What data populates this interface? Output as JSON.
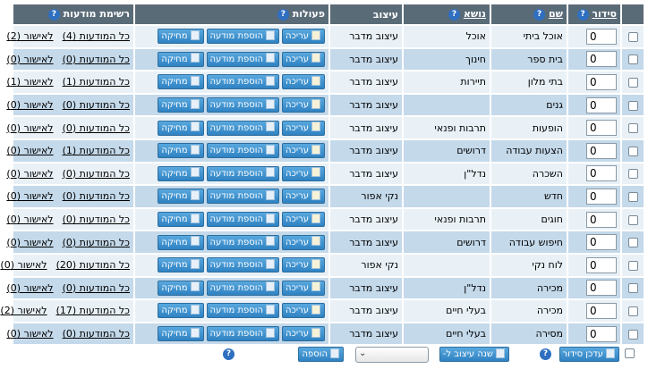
{
  "headers": {
    "order": "סידור",
    "name": "שם",
    "topic": "נושא",
    "design": "עיצוב",
    "actions": "פעולות",
    "ads": "רשימת מודעות"
  },
  "help_glyph": "?",
  "buttons": {
    "edit": "עריכה",
    "add_ad": "הוספת מודעה",
    "delete": "מחיקה"
  },
  "rows": [
    {
      "order": "0",
      "name": "אוכל ביתי",
      "topic": "אוכל",
      "design": "עיצוב מדבר",
      "all_ads": "כל המודעות (4)",
      "pending": "לאישור (2)"
    },
    {
      "order": "0",
      "name": "בית ספר",
      "topic": "חינוך",
      "design": "עיצוב מדבר",
      "all_ads": "כל המודעות (0)",
      "pending": "לאישור (0)"
    },
    {
      "order": "0",
      "name": "בתי מלון",
      "topic": "תיירות",
      "design": "עיצוב מדבר",
      "all_ads": "כל המודעות (1)",
      "pending": "לאישור (1)"
    },
    {
      "order": "0",
      "name": "גנים",
      "topic": "",
      "design": "עיצוב מדבר",
      "all_ads": "כל המודעות (0)",
      "pending": "לאישור (0)"
    },
    {
      "order": "0",
      "name": "הופעות",
      "topic": "תרבות ופנאי",
      "design": "עיצוב מדבר",
      "all_ads": "כל המודעות (0)",
      "pending": "לאישור (0)"
    },
    {
      "order": "0",
      "name": "הצעות עבודה",
      "topic": "דרושים",
      "design": "עיצוב מדבר",
      "all_ads": "כל המודעות (1)",
      "pending": "לאישור (0)"
    },
    {
      "order": "0",
      "name": "השכרה",
      "topic": "נדל\"ן",
      "design": "עיצוב מדבר",
      "all_ads": "כל המודעות (0)",
      "pending": "לאישור (0)"
    },
    {
      "order": "0",
      "name": "חדש",
      "topic": "",
      "design": "נקי אפור",
      "all_ads": "כל המודעות (0)",
      "pending": "לאישור (0)"
    },
    {
      "order": "0",
      "name": "חוגים",
      "topic": "תרבות ופנאי",
      "design": "עיצוב מדבר",
      "all_ads": "כל המודעות (0)",
      "pending": "לאישור (0)"
    },
    {
      "order": "0",
      "name": "חיפוש עבודה",
      "topic": "דרושים",
      "design": "עיצוב מדבר",
      "all_ads": "כל המודעות (0)",
      "pending": "לאישור (0)"
    },
    {
      "order": "0",
      "name": "לוח נקי",
      "topic": "",
      "design": "נקי אפור",
      "all_ads": "כל המודעות (20)",
      "pending": "לאישור (0)"
    },
    {
      "order": "0",
      "name": "מכירה",
      "topic": "נדל\"ן",
      "design": "עיצוב מדבר",
      "all_ads": "כל המודעות (0)",
      "pending": "לאישור (0)"
    },
    {
      "order": "0",
      "name": "מכירה",
      "topic": "בעלי חיים",
      "design": "עיצוב מדבר",
      "all_ads": "כל המודעות (17)",
      "pending": "לאישור (2)"
    },
    {
      "order": "0",
      "name": "מסירה",
      "topic": "בעלי חיים",
      "design": "עיצוב מדבר",
      "all_ads": "כל המודעות (0)",
      "pending": "לאישור (0)"
    }
  ],
  "footer": {
    "update_order": "עדכן סידור",
    "change_design": "שנה עיצוב ל-",
    "design_select_value": "",
    "add": "הוספה"
  },
  "colors": {
    "header_bg": "#5a6b78",
    "row_light": "#e9f1f7",
    "row_dark": "#c4d9ea",
    "button": "#3a8fd0"
  }
}
